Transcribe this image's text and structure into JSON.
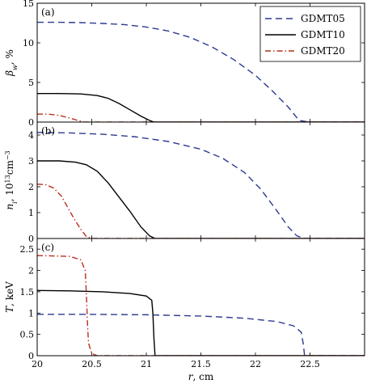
{
  "chart_data": {
    "type": "line",
    "xlabel_var": "r",
    "xlabel_unit": ", cm",
    "xlim": [
      20,
      23
    ],
    "xticks": [
      20,
      20.5,
      21,
      21.5,
      22,
      22.5
    ],
    "xtick_labels": [
      "20",
      "20.5",
      "21",
      "21.5",
      "22",
      "22.5"
    ],
    "legend": {
      "position": "top-right",
      "entries": [
        {
          "name": "GDMT05",
          "color": "#2b3a91",
          "dash": "dashed"
        },
        {
          "name": "GDMT10",
          "color": "#000000",
          "dash": "solid"
        },
        {
          "name": "GDMT20",
          "color": "#b5301f",
          "dash": "dashdot"
        }
      ]
    },
    "panels": [
      {
        "tag": "(a)",
        "ylabel_html": "β",
        "ylabel_sub": "w",
        "ylabel_unit": ", %",
        "ylim": [
          0,
          15
        ],
        "yticks": [
          0,
          5,
          10,
          15
        ],
        "ytick_labels": [
          "0",
          "5",
          "10",
          "15"
        ],
        "series": [
          {
            "name": "GDMT05",
            "points": [
              [
                20.0,
                12.6
              ],
              [
                20.2,
                12.6
              ],
              [
                20.4,
                12.55
              ],
              [
                20.6,
                12.45
              ],
              [
                20.8,
                12.3
              ],
              [
                21.0,
                12.0
              ],
              [
                21.2,
                11.5
              ],
              [
                21.4,
                10.7
              ],
              [
                21.6,
                9.5
              ],
              [
                21.8,
                7.9
              ],
              [
                22.0,
                5.9
              ],
              [
                22.15,
                4.0
              ],
              [
                22.3,
                1.9
              ],
              [
                22.4,
                0.2
              ],
              [
                22.5,
                0.0
              ],
              [
                23.0,
                0.0
              ]
            ]
          },
          {
            "name": "GDMT10",
            "points": [
              [
                20.0,
                3.6
              ],
              [
                20.2,
                3.6
              ],
              [
                20.4,
                3.55
              ],
              [
                20.55,
                3.35
              ],
              [
                20.65,
                3.0
              ],
              [
                20.75,
                2.35
              ],
              [
                20.85,
                1.55
              ],
              [
                20.95,
                0.75
              ],
              [
                21.03,
                0.2
              ],
              [
                21.07,
                0.0
              ],
              [
                23.0,
                0.0
              ]
            ]
          },
          {
            "name": "GDMT20",
            "points": [
              [
                20.0,
                1.0
              ],
              [
                20.1,
                1.0
              ],
              [
                20.2,
                0.85
              ],
              [
                20.3,
                0.5
              ],
              [
                20.38,
                0.18
              ],
              [
                20.43,
                0.0
              ],
              [
                23.0,
                0.0
              ]
            ]
          }
        ]
      },
      {
        "tag": "(b)",
        "ylabel_html": "n",
        "ylabel_sub": "i",
        "ylabel_unit": ", 10",
        "ylabel_sup": "13",
        "ylabel_unit2": "cm",
        "ylabel_sup2": "−3",
        "ylim": [
          0,
          4.5
        ],
        "yticks": [
          0,
          1,
          2,
          3,
          4
        ],
        "ytick_labels": [
          "0",
          "1",
          "2",
          "3",
          "4"
        ],
        "series": [
          {
            "name": "GDMT05",
            "points": [
              [
                20.0,
                4.1
              ],
              [
                20.3,
                4.08
              ],
              [
                20.6,
                4.03
              ],
              [
                20.9,
                3.93
              ],
              [
                21.2,
                3.75
              ],
              [
                21.5,
                3.45
              ],
              [
                21.7,
                3.1
              ],
              [
                21.9,
                2.55
              ],
              [
                22.05,
                1.9
              ],
              [
                22.2,
                1.05
              ],
              [
                22.3,
                0.45
              ],
              [
                22.38,
                0.1
              ],
              [
                22.45,
                0.0
              ],
              [
                23.0,
                0.0
              ]
            ]
          },
          {
            "name": "GDMT10",
            "points": [
              [
                20.0,
                3.0
              ],
              [
                20.2,
                3.0
              ],
              [
                20.35,
                2.95
              ],
              [
                20.45,
                2.85
              ],
              [
                20.55,
                2.6
              ],
              [
                20.65,
                2.15
              ],
              [
                20.75,
                1.6
              ],
              [
                20.85,
                1.05
              ],
              [
                20.95,
                0.45
              ],
              [
                21.03,
                0.1
              ],
              [
                21.08,
                0.0
              ],
              [
                23.0,
                0.0
              ]
            ]
          },
          {
            "name": "GDMT20",
            "points": [
              [
                20.0,
                2.1
              ],
              [
                20.08,
                2.08
              ],
              [
                20.15,
                1.95
              ],
              [
                20.22,
                1.65
              ],
              [
                20.28,
                1.2
              ],
              [
                20.34,
                0.75
              ],
              [
                20.4,
                0.35
              ],
              [
                20.45,
                0.08
              ],
              [
                20.5,
                0.0
              ],
              [
                23.0,
                0.0
              ]
            ]
          }
        ]
      },
      {
        "tag": "(c)",
        "ylabel_html": "T",
        "ylabel_unit": ", keV",
        "ylim": [
          0,
          2.75
        ],
        "yticks": [
          0,
          0.5,
          1,
          1.5,
          2,
          2.5
        ],
        "ytick_labels": [
          "0",
          "0.5",
          "1",
          "1.5",
          "2",
          "2.5"
        ],
        "series": [
          {
            "name": "GDMT05",
            "points": [
              [
                20.0,
                0.97
              ],
              [
                20.5,
                0.97
              ],
              [
                21.0,
                0.96
              ],
              [
                21.5,
                0.93
              ],
              [
                21.9,
                0.88
              ],
              [
                22.2,
                0.8
              ],
              [
                22.35,
                0.7
              ],
              [
                22.42,
                0.55
              ],
              [
                22.44,
                0.25
              ],
              [
                22.45,
                0.0
              ],
              [
                23.0,
                0.0
              ]
            ]
          },
          {
            "name": "GDMT10",
            "points": [
              [
                20.0,
                1.53
              ],
              [
                20.3,
                1.52
              ],
              [
                20.6,
                1.5
              ],
              [
                20.85,
                1.46
              ],
              [
                21.0,
                1.4
              ],
              [
                21.05,
                1.3
              ],
              [
                21.06,
                1.0
              ],
              [
                21.07,
                0.4
              ],
              [
                21.08,
                0.0
              ],
              [
                23.0,
                0.0
              ]
            ]
          },
          {
            "name": "GDMT20",
            "points": [
              [
                20.0,
                2.35
              ],
              [
                20.3,
                2.33
              ],
              [
                20.4,
                2.25
              ],
              [
                20.44,
                2.0
              ],
              [
                20.45,
                1.5
              ],
              [
                20.46,
                0.8
              ],
              [
                20.47,
                0.3
              ],
              [
                20.5,
                0.05
              ],
              [
                20.55,
                0.0
              ],
              [
                23.0,
                0.0
              ]
            ]
          }
        ]
      }
    ]
  }
}
